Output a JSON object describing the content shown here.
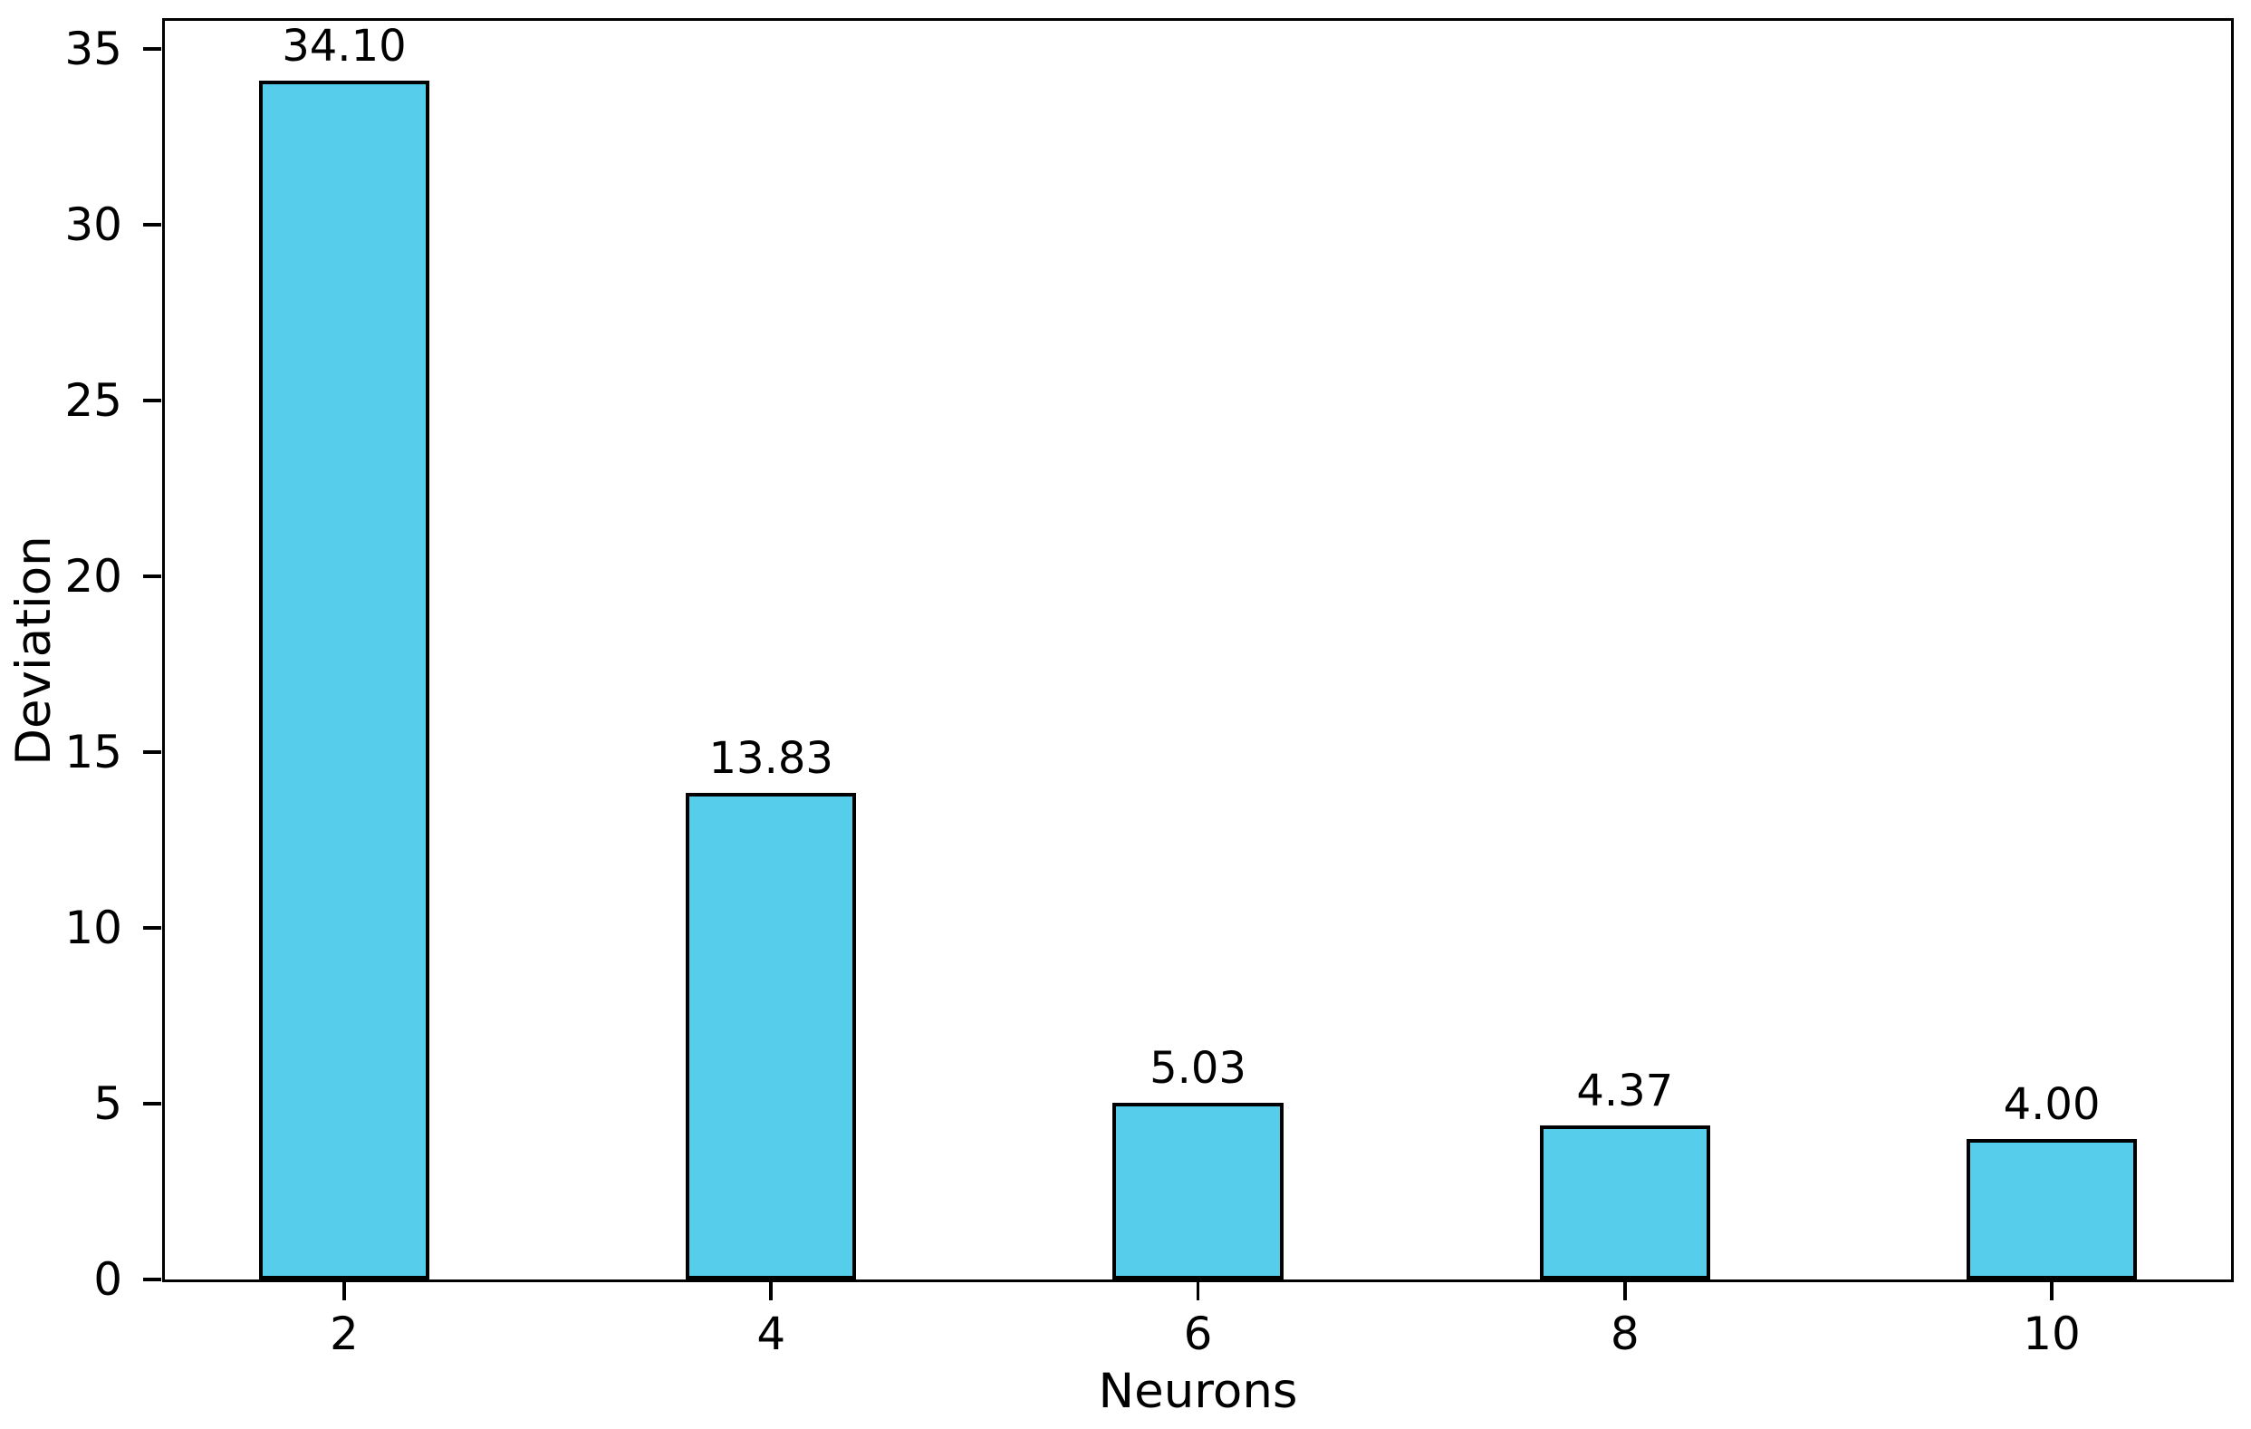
{
  "chart_data": {
    "type": "bar",
    "title": "",
    "xlabel": "Neurons",
    "ylabel": "Deviation",
    "categories": [
      "2",
      "4",
      "6",
      "8",
      "10"
    ],
    "x": [
      2,
      4,
      6,
      8,
      10
    ],
    "values": [
      34.1,
      13.83,
      5.03,
      4.37,
      4.0
    ],
    "bar_labels": [
      "34.10",
      "13.83",
      "5.03",
      "4.37",
      "4.00"
    ],
    "yticks": [
      0,
      5,
      10,
      15,
      20,
      25,
      30,
      35
    ],
    "xlim": [
      1.16,
      10.84
    ],
    "ylim": [
      0,
      35.8
    ],
    "bar_width_data": 0.8,
    "bar_color": "#56CDEB",
    "bar_edge_color": "#000000",
    "axis_color": "#000000",
    "background_color": "#ffffff",
    "grid": false,
    "legend": null
  }
}
